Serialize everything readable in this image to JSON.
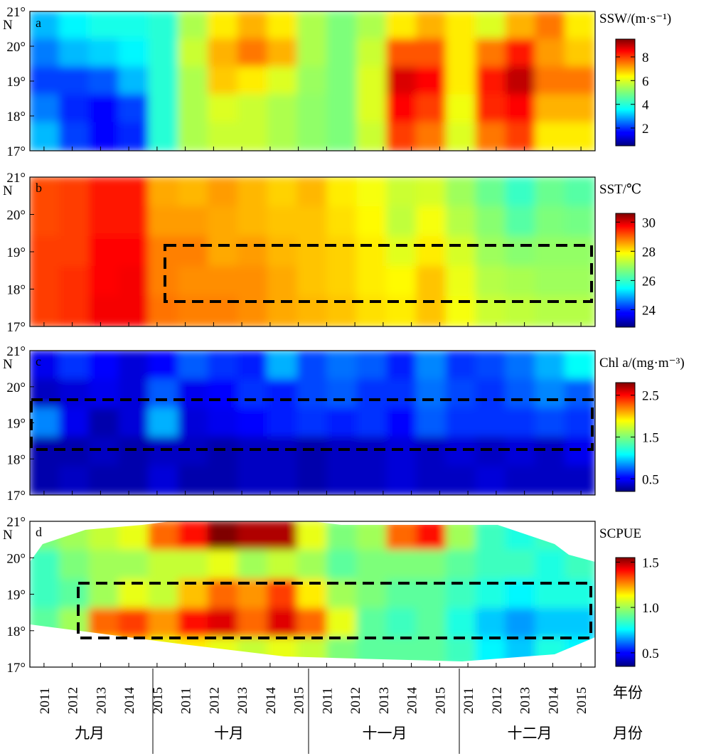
{
  "chart_data": [
    {
      "panel_letter": "a",
      "type": "heatmap",
      "colorbar_title": "SSW/(m·s⁻¹)",
      "colorbar_ticks": [
        "2",
        "4",
        "6",
        "8"
      ],
      "colorbar_range": [
        0.5,
        9.5
      ],
      "y_ticks": [
        "21°",
        "20°",
        "19°",
        "18°",
        "17°"
      ],
      "y_unit": "N",
      "ylim": [
        17,
        21
      ],
      "values": [
        [
          3.0,
          3.5,
          3.8,
          3.8,
          4.0,
          5.5,
          6.5,
          7.0,
          6.5,
          5.5,
          5.0,
          5.5,
          6.5,
          7.0,
          6.5,
          6.0,
          7.0,
          7.5,
          6.5
        ],
        [
          2.5,
          3.0,
          3.2,
          3.5,
          4.0,
          5.8,
          7.0,
          7.5,
          7.0,
          5.5,
          5.0,
          5.8,
          7.8,
          7.8,
          6.5,
          7.5,
          8.3,
          7.2,
          6.8
        ],
        [
          2.0,
          2.0,
          2.2,
          3.0,
          4.0,
          5.5,
          6.8,
          6.5,
          6.0,
          5.3,
          5.0,
          6.0,
          8.8,
          8.5,
          6.5,
          8.3,
          9.0,
          7.5,
          7.5
        ],
        [
          2.5,
          1.8,
          1.5,
          2.0,
          4.0,
          5.5,
          6.0,
          5.8,
          5.5,
          5.2,
          5.0,
          6.0,
          8.5,
          8.0,
          6.2,
          8.2,
          8.5,
          7.0,
          7.0
        ],
        [
          3.0,
          2.0,
          1.5,
          1.8,
          4.0,
          5.5,
          5.8,
          5.8,
          5.5,
          5.2,
          5.0,
          5.8,
          8.0,
          7.5,
          6.0,
          7.5,
          8.0,
          6.5,
          6.5
        ]
      ]
    },
    {
      "panel_letter": "b",
      "type": "heatmap",
      "colorbar_title": "SST/℃",
      "colorbar_ticks": [
        "24",
        "26",
        "28",
        "30"
      ],
      "colorbar_range": [
        22.8,
        30.6
      ],
      "y_ticks": [
        "21°",
        "20°",
        "19°",
        "18°",
        "17°"
      ],
      "y_unit": "N",
      "ylim": [
        17,
        21
      ],
      "values": [
        [
          29.2,
          29.3,
          29.6,
          29.6,
          28.5,
          28.4,
          28.6,
          28.4,
          28.2,
          28.4,
          28.0,
          27.8,
          27.4,
          27.5,
          27.0,
          26.5,
          26.0,
          26.5,
          26.3
        ],
        [
          29.2,
          29.3,
          29.6,
          29.6,
          28.6,
          28.6,
          28.5,
          28.4,
          28.3,
          28.3,
          28.1,
          27.9,
          27.3,
          27.8,
          27.2,
          26.8,
          26.3,
          26.7,
          26.6
        ],
        [
          29.3,
          29.3,
          29.7,
          29.7,
          28.8,
          28.8,
          28.5,
          28.6,
          28.4,
          28.3,
          28.2,
          28.0,
          27.6,
          28.0,
          27.5,
          27.0,
          26.8,
          26.9,
          26.9
        ],
        [
          29.3,
          29.4,
          29.7,
          29.8,
          28.8,
          28.7,
          28.7,
          28.7,
          28.5,
          28.3,
          28.2,
          28.0,
          27.9,
          28.3,
          27.7,
          27.2,
          27.1,
          27.0,
          27.0
        ],
        [
          29.3,
          29.4,
          29.8,
          29.8,
          28.9,
          28.8,
          28.8,
          28.7,
          28.5,
          28.4,
          28.3,
          28.1,
          28.0,
          28.3,
          27.8,
          27.4,
          27.3,
          27.2,
          27.2
        ]
      ]
    },
    {
      "panel_letter": "c",
      "type": "heatmap",
      "colorbar_title": "Chl a/(mg·m⁻³)",
      "colorbar_ticks": [
        "0.5",
        "1.5",
        "2.5"
      ],
      "colorbar_range": [
        0.2,
        2.8
      ],
      "y_ticks": [
        "21°",
        "20°",
        "19°",
        "18°",
        "17°"
      ],
      "y_unit": "N",
      "ylim": [
        17,
        21
      ],
      "values": [
        [
          0.45,
          0.6,
          0.5,
          0.4,
          0.5,
          0.7,
          0.6,
          0.55,
          0.9,
          0.65,
          0.75,
          0.7,
          0.55,
          0.8,
          0.6,
          0.65,
          0.75,
          0.9,
          1.1
        ],
        [
          0.35,
          0.4,
          0.45,
          0.4,
          0.7,
          0.45,
          0.5,
          0.6,
          0.55,
          0.65,
          0.7,
          0.6,
          0.6,
          0.75,
          0.65,
          0.6,
          0.7,
          0.8,
          0.7
        ],
        [
          0.8,
          0.45,
          0.3,
          0.4,
          0.9,
          0.4,
          0.45,
          0.5,
          0.55,
          0.6,
          0.55,
          0.6,
          0.5,
          0.7,
          0.6,
          0.6,
          0.6,
          0.65,
          0.6
        ],
        [
          0.3,
          0.3,
          0.35,
          0.3,
          0.35,
          0.35,
          0.3,
          0.35,
          0.35,
          0.3,
          0.35,
          0.35,
          0.4,
          0.35,
          0.4,
          0.35,
          0.4,
          0.35,
          0.45
        ],
        [
          0.3,
          0.35,
          0.3,
          0.3,
          0.4,
          0.3,
          0.3,
          0.35,
          0.35,
          0.3,
          0.35,
          0.35,
          0.4,
          0.35,
          0.35,
          0.4,
          0.35,
          0.35,
          0.35
        ]
      ]
    },
    {
      "panel_letter": "d",
      "type": "heatmap",
      "colorbar_title": "SCPUE",
      "colorbar_ticks": [
        "0.5",
        "1.0",
        "1.5"
      ],
      "colorbar_range": [
        0.35,
        1.55
      ],
      "y_ticks": [
        "21°",
        "20°",
        "19°",
        "18°",
        "17°"
      ],
      "y_unit": "N",
      "ylim": [
        17,
        21
      ],
      "values": [
        [
          0.95,
          1.0,
          1.05,
          1.1,
          1.3,
          1.4,
          1.55,
          1.5,
          1.5,
          1.1,
          0.95,
          1.0,
          1.3,
          1.4,
          1.0,
          0.85,
          0.8,
          0.85,
          0.8
        ],
        [
          0.85,
          0.95,
          1.0,
          1.0,
          1.05,
          1.05,
          1.1,
          1.0,
          1.05,
          1.0,
          0.9,
          0.95,
          0.95,
          0.95,
          0.9,
          0.85,
          0.85,
          0.8,
          0.85
        ],
        [
          0.85,
          0.9,
          1.0,
          1.1,
          1.05,
          1.2,
          1.3,
          1.25,
          1.35,
          1.15,
          1.0,
          0.95,
          0.9,
          0.9,
          0.85,
          0.8,
          0.75,
          0.8,
          0.8
        ],
        [
          0.9,
          1.0,
          1.3,
          1.35,
          1.25,
          1.4,
          1.45,
          1.3,
          1.45,
          1.3,
          1.1,
          0.9,
          0.85,
          0.9,
          0.8,
          0.7,
          0.65,
          0.7,
          0.7
        ],
        [
          0.9,
          0.95,
          1.15,
          1.2,
          1.1,
          1.15,
          1.1,
          1.05,
          1.1,
          1.05,
          0.95,
          0.9,
          0.9,
          0.9,
          0.85,
          0.75,
          0.7,
          0.8,
          0.75
        ]
      ]
    }
  ],
  "x_axis": {
    "year_ticks": [
      "2011",
      "2012",
      "2013",
      "2014",
      "2015",
      "2011",
      "2012",
      "2013",
      "2014",
      "2015",
      "2011",
      "2012",
      "2013",
      "2014",
      "2015",
      "2011",
      "2012",
      "2013",
      "2014",
      "2015"
    ],
    "year_label": "年份",
    "months": [
      "九月",
      "十月",
      "十一月",
      "十二月"
    ],
    "month_label": "月份"
  }
}
